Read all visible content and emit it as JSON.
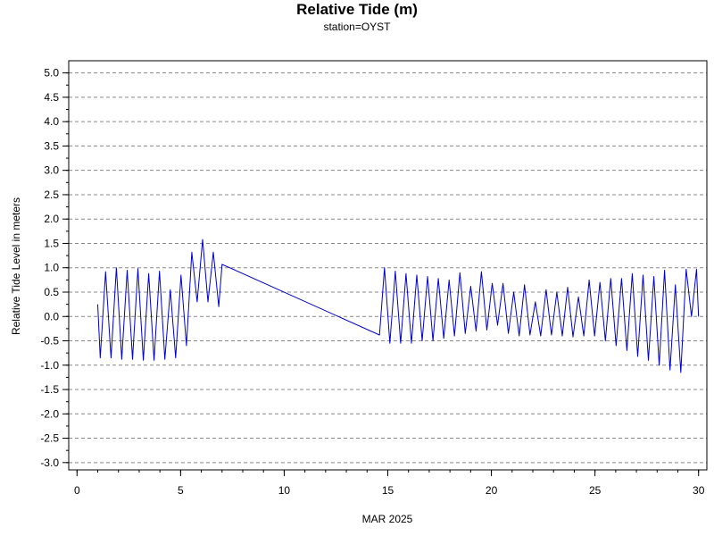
{
  "chart_data": {
    "type": "line",
    "title": "Relative Tide (m)",
    "subtitle": "station=OYST",
    "xlabel": "MAR 2025",
    "ylabel": "Relative Tide Level in meters",
    "xlim": [
      -0.4,
      30.4
    ],
    "ylim": [
      -3.15,
      5.25
    ],
    "x_ticks": [
      0,
      5,
      10,
      15,
      20,
      25,
      30
    ],
    "x_tick_labels": [
      "0",
      "5",
      "10",
      "15",
      "20",
      "25",
      "30"
    ],
    "y_ticks": [
      -3.0,
      -2.5,
      -2.0,
      -1.5,
      -1.0,
      -0.5,
      0.0,
      0.5,
      1.0,
      1.5,
      2.0,
      2.5,
      3.0,
      3.5,
      4.0,
      4.5,
      5.0
    ],
    "y_tick_labels": [
      "-3.0",
      "-2.5",
      "-2.0",
      "-1.5",
      "-1.0",
      "-0.5",
      "0.0",
      "0.5",
      "1.0",
      "1.5",
      "2.0",
      "2.5",
      "3.0",
      "3.5",
      "4.0",
      "4.5",
      "5.0"
    ],
    "y_minor_step": 0.25,
    "x_minor_step": 1,
    "grid_y_major": true,
    "line_color": "#0000cc",
    "series": [
      {
        "x": [
          1.0,
          1.12,
          1.38,
          1.64,
          1.9,
          2.16,
          2.42,
          2.68,
          2.94,
          3.2,
          3.46,
          3.72,
          3.98,
          4.24,
          4.5,
          4.76,
          5.02,
          5.28,
          5.54,
          5.8,
          6.06,
          6.32,
          6.58,
          6.84,
          7.0,
          14.6,
          14.84,
          15.1,
          15.36,
          15.62,
          15.88,
          16.14,
          16.4,
          16.66,
          16.92,
          17.18,
          17.44,
          17.7,
          17.96,
          18.22,
          18.48,
          18.74,
          19.0,
          19.26,
          19.52,
          19.78,
          20.04,
          20.3,
          20.56,
          20.82,
          21.08,
          21.34,
          21.6,
          21.86,
          22.12,
          22.38,
          22.64,
          22.9,
          23.16,
          23.42,
          23.68,
          23.94,
          24.2,
          24.46,
          24.72,
          24.98,
          25.24,
          25.5,
          25.76,
          26.02,
          26.28,
          26.54,
          26.8,
          27.06,
          27.32,
          27.58,
          27.84,
          28.1,
          28.36,
          28.62,
          28.88,
          29.14,
          29.4,
          29.66,
          29.9,
          30.0
        ],
        "y": [
          0.25,
          -0.85,
          0.92,
          -0.85,
          1.0,
          -0.88,
          0.95,
          -0.88,
          0.98,
          -0.9,
          0.88,
          -0.9,
          0.93,
          -0.88,
          0.55,
          -0.85,
          0.85,
          -0.6,
          1.32,
          0.3,
          1.58,
          0.3,
          1.32,
          0.2,
          1.07,
          -0.38,
          1.0,
          -0.55,
          0.93,
          -0.55,
          0.88,
          -0.55,
          0.85,
          -0.5,
          0.82,
          -0.5,
          0.78,
          -0.45,
          0.75,
          -0.4,
          0.9,
          -0.35,
          0.62,
          -0.3,
          0.92,
          -0.28,
          0.68,
          -0.18,
          0.68,
          -0.35,
          0.5,
          -0.4,
          0.65,
          -0.38,
          0.3,
          -0.4,
          0.55,
          -0.38,
          0.5,
          -0.4,
          0.6,
          -0.42,
          0.4,
          -0.4,
          0.75,
          -0.4,
          0.7,
          -0.5,
          0.78,
          -0.6,
          0.78,
          -0.7,
          0.88,
          -0.82,
          0.85,
          -0.9,
          0.82,
          -1.0,
          0.95,
          -1.1,
          0.65,
          -1.15,
          0.97,
          0.0,
          0.97,
          0.0
        ]
      }
    ]
  }
}
